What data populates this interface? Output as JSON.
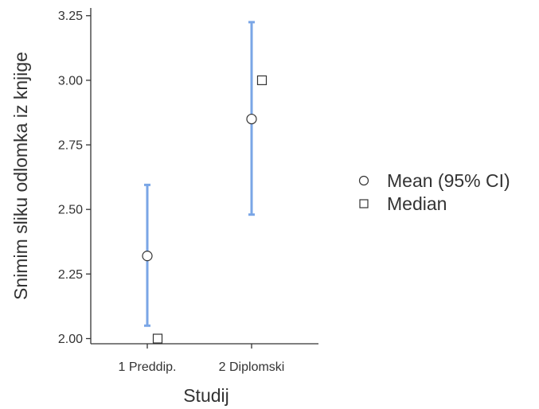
{
  "chart_data": {
    "type": "scatter",
    "title": "",
    "xlabel": "Studij",
    "ylabel": "Snimim sliku odlomka iz knjige",
    "categories": [
      "1 Preddip.",
      "2 Diplomski"
    ],
    "series": [
      {
        "name": "Mean (95% CI)",
        "marker": "circle",
        "values": [
          2.32,
          2.85
        ]
      },
      {
        "name": "Median",
        "marker": "square",
        "values": [
          2.0,
          3.0
        ]
      }
    ],
    "ci_lower": [
      2.05,
      2.48
    ],
    "ci_upper": [
      2.595,
      3.225
    ],
    "ylim": [
      1.98,
      3.28
    ],
    "yticks": [
      2.0,
      2.25,
      2.5,
      2.75,
      3.0,
      3.25
    ],
    "ytick_labels": [
      "2.00",
      "2.25",
      "2.50",
      "2.75",
      "3.00",
      "3.25"
    ],
    "grid": false,
    "legend_position": "right",
    "colors": {
      "ci": "#7aa6e6",
      "marker_stroke": "#333333",
      "axis": "#333333"
    }
  }
}
